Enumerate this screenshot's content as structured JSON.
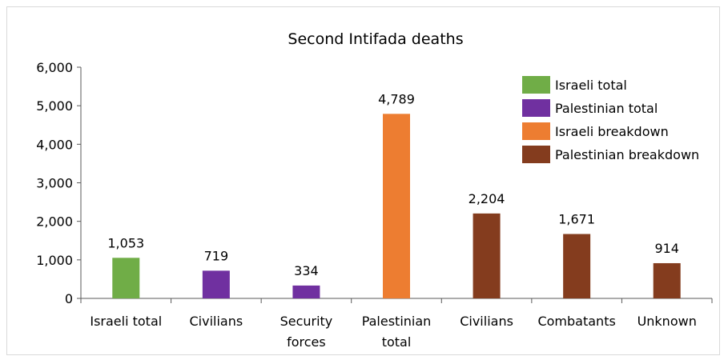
{
  "chart_data": {
    "type": "bar",
    "title": "Second Intifada deaths",
    "xlabel": "",
    "ylabel": "",
    "ylim": [
      0,
      6000
    ],
    "yticks": [
      0,
      1000,
      2000,
      3000,
      4000,
      5000,
      6000
    ],
    "ytick_labels": [
      "0",
      "1,000",
      "2,000",
      "3,000",
      "4,000",
      "5,000",
      "6,000"
    ],
    "grid": false,
    "legend_position": "top-right",
    "categories": [
      [
        "Israeli total"
      ],
      [
        "Civilians"
      ],
      [
        "Security",
        "forces"
      ],
      [
        "Palestinian",
        "total"
      ],
      [
        "Civilians"
      ],
      [
        "Combatants"
      ],
      [
        "Unknown"
      ]
    ],
    "values": [
      1053,
      719,
      334,
      4789,
      2204,
      1671,
      914
    ],
    "value_labels": [
      "1,053",
      "719",
      "334",
      "4,789",
      "2,204",
      "1,671",
      "914"
    ],
    "bar_group": [
      0,
      1,
      1,
      2,
      3,
      3,
      3
    ],
    "legend": [
      {
        "name": "Israeli total",
        "color": "#70ad47"
      },
      {
        "name": "Palestinian total",
        "color": "#7030a0"
      },
      {
        "name": "Israeli breakdown",
        "color": "#ed7d31"
      },
      {
        "name": "Palestinian breakdown",
        "color": "#843c1e"
      }
    ]
  }
}
